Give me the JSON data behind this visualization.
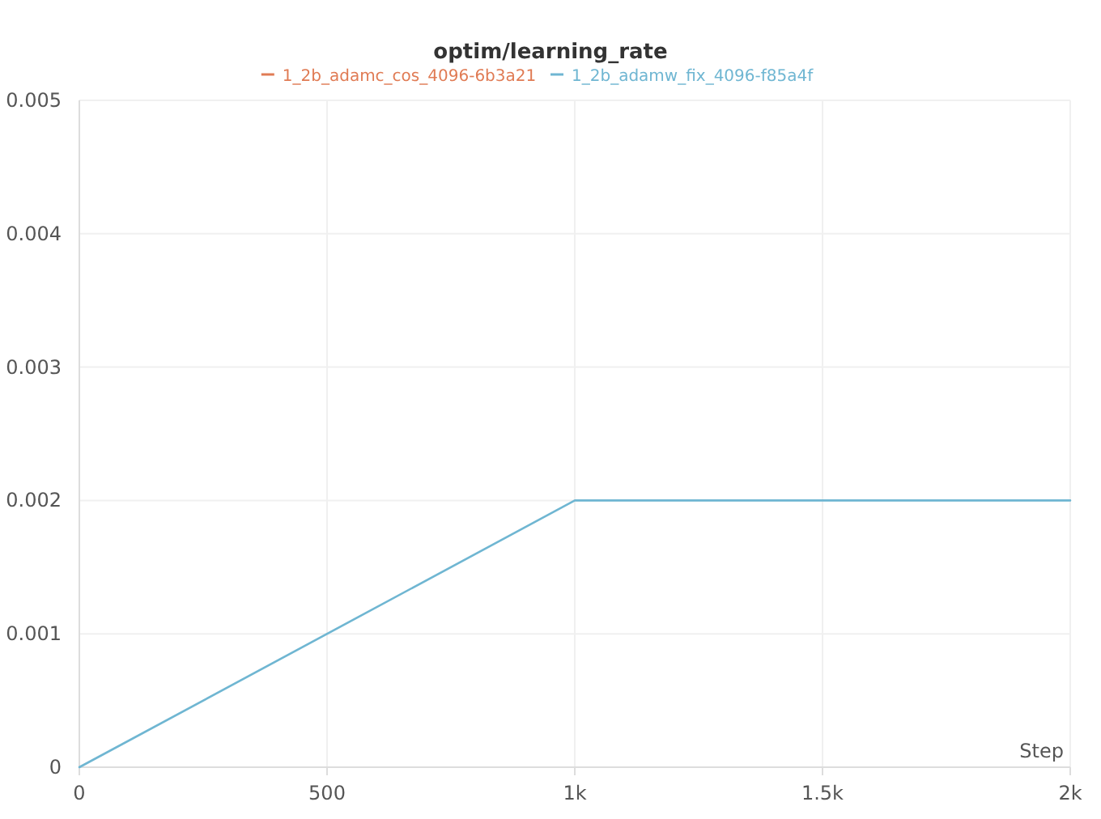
{
  "chart_data": {
    "type": "line",
    "title": "optim/learning_rate",
    "xlabel": "Step",
    "x": [
      0,
      1000,
      2000
    ],
    "series": [
      {
        "name": "1_2b_adamc_cos_4096-6b3a21",
        "color": "#e07b54",
        "values": [
          null,
          null,
          null
        ]
      },
      {
        "name": "1_2b_adamw_fix_4096-f85a4f",
        "color": "#6fb6d2",
        "values": [
          0,
          0.002,
          0.002
        ]
      }
    ],
    "xlim": [
      0,
      2000
    ],
    "xticks": [
      0,
      {
        "value": 500,
        "label": "500"
      },
      {
        "value": 1000,
        "label": "1k"
      },
      {
        "value": 1500,
        "label": "1.5k"
      },
      {
        "value": 2000,
        "label": "2k"
      }
    ],
    "ylim": [
      0,
      0.005
    ],
    "yticks": [
      0,
      0.001,
      0.002,
      0.003,
      0.004,
      0.005
    ],
    "grid": true,
    "legend": "top",
    "marker": "none",
    "line_style": "solid"
  }
}
